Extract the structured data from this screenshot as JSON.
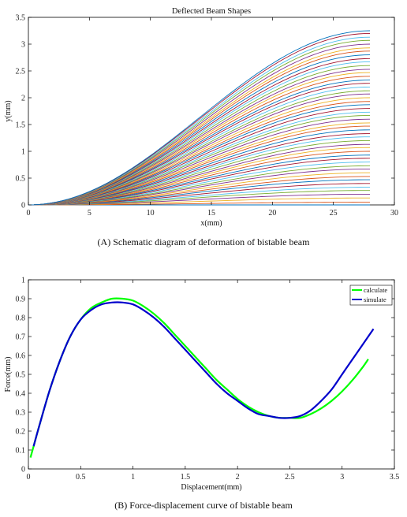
{
  "chart_data": [
    {
      "type": "line",
      "title": "Deflected Beam Shapes",
      "xlabel": "x(mm)",
      "ylabel": "y(mm)",
      "xlim": [
        0,
        30
      ],
      "ylim": [
        0,
        3.5
      ],
      "xticks": [
        0,
        5,
        10,
        15,
        20,
        25,
        30
      ],
      "yticks": [
        0,
        0.5,
        1,
        1.5,
        2,
        2.5,
        3,
        3.5
      ],
      "grid": false,
      "curve_shape": "y = A * (1 - cos(pi * x / L)) / 2",
      "beam_length": 28,
      "end_deflections": [
        0,
        0.05,
        0.13,
        0.2,
        0.27,
        0.33,
        0.4,
        0.47,
        0.53,
        0.6,
        0.67,
        0.73,
        0.8,
        0.87,
        0.93,
        1.0,
        1.07,
        1.13,
        1.2,
        1.27,
        1.33,
        1.4,
        1.47,
        1.53,
        1.6,
        1.67,
        1.73,
        1.8,
        1.87,
        1.93,
        2.0,
        2.07,
        2.13,
        2.2,
        2.27,
        2.33,
        2.4,
        2.47,
        2.53,
        2.6,
        2.67,
        2.73,
        2.8,
        2.87,
        2.93,
        3.0,
        3.07,
        3.13,
        3.2,
        3.25
      ],
      "series_colors": [
        "#0072BD",
        "#D95319",
        "#EDB120",
        "#7E2F8E",
        "#77AC30",
        "#4DBEEE",
        "#A2142F"
      ],
      "caption": "(A) Schematic diagram of deformation of bistable beam"
    },
    {
      "type": "line",
      "title": "",
      "xlabel": "Displacement(mm)",
      "ylabel": "Force(mm)",
      "xlim": [
        0,
        3.5
      ],
      "ylim": [
        0,
        1
      ],
      "xticks": [
        0,
        0.5,
        1,
        1.5,
        2,
        2.5,
        3,
        3.5
      ],
      "yticks": [
        0,
        0.1,
        0.2,
        0.3,
        0.4,
        0.5,
        0.6,
        0.7,
        0.8,
        0.9,
        1
      ],
      "grid": false,
      "legend": "top-right",
      "series": [
        {
          "name": "calculate",
          "color": "#00ff00",
          "x": [
            0.02,
            0.05,
            0.1,
            0.2,
            0.3,
            0.4,
            0.5,
            0.6,
            0.7,
            0.8,
            0.9,
            1.0,
            1.1,
            1.2,
            1.3,
            1.4,
            1.5,
            1.6,
            1.7,
            1.8,
            1.9,
            2.0,
            2.1,
            2.2,
            2.3,
            2.4,
            2.5,
            2.6,
            2.7,
            2.8,
            2.9,
            3.0,
            3.1,
            3.2,
            3.25
          ],
          "y": [
            0.06,
            0.12,
            0.22,
            0.41,
            0.57,
            0.7,
            0.79,
            0.85,
            0.88,
            0.9,
            0.9,
            0.89,
            0.86,
            0.82,
            0.77,
            0.71,
            0.65,
            0.59,
            0.53,
            0.47,
            0.42,
            0.37,
            0.33,
            0.3,
            0.28,
            0.27,
            0.27,
            0.27,
            0.29,
            0.32,
            0.36,
            0.41,
            0.47,
            0.54,
            0.58
          ]
        },
        {
          "name": "simulate",
          "color": "#0000cc",
          "x": [
            0.05,
            0.1,
            0.2,
            0.3,
            0.4,
            0.5,
            0.6,
            0.7,
            0.8,
            0.9,
            1.0,
            1.1,
            1.2,
            1.3,
            1.4,
            1.5,
            1.6,
            1.7,
            1.8,
            1.9,
            2.0,
            2.1,
            2.2,
            2.3,
            2.4,
            2.5,
            2.6,
            2.7,
            2.8,
            2.9,
            3.0,
            3.1,
            3.2,
            3.3
          ],
          "y": [
            0.12,
            0.22,
            0.41,
            0.57,
            0.7,
            0.79,
            0.84,
            0.87,
            0.88,
            0.88,
            0.87,
            0.84,
            0.8,
            0.75,
            0.69,
            0.63,
            0.57,
            0.51,
            0.45,
            0.4,
            0.36,
            0.32,
            0.29,
            0.28,
            0.27,
            0.27,
            0.28,
            0.31,
            0.36,
            0.42,
            0.5,
            0.58,
            0.66,
            0.74
          ]
        }
      ],
      "caption": "(B) Force-displacement curve of bistable beam"
    }
  ]
}
